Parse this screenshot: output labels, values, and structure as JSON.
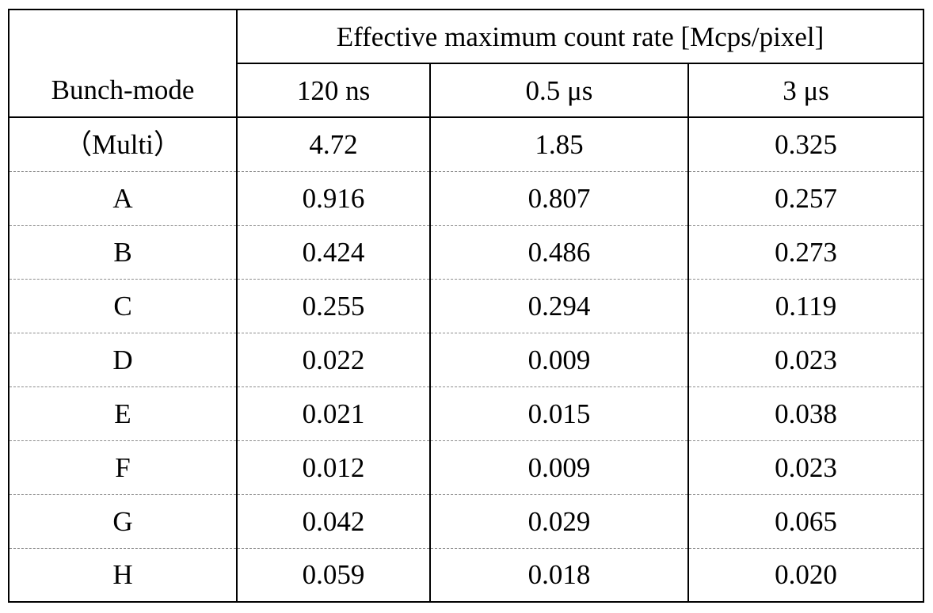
{
  "table": {
    "group_header": "Effective maximum count rate [Mcps/pixel]",
    "row_header_label": "Bunch-mode",
    "columns": [
      "120 ns",
      "0.5 μs",
      "3 μs"
    ],
    "rows": [
      {
        "mode": "（Multi）",
        "values": [
          "4.72",
          "1.85",
          "0.325"
        ]
      },
      {
        "mode": "A",
        "values": [
          "0.916",
          "0.807",
          "0.257"
        ]
      },
      {
        "mode": "B",
        "values": [
          "0.424",
          "0.486",
          "0.273"
        ]
      },
      {
        "mode": "C",
        "values": [
          "0.255",
          "0.294",
          "0.119"
        ]
      },
      {
        "mode": "D",
        "values": [
          "0.022",
          "0.009",
          "0.023"
        ]
      },
      {
        "mode": "E",
        "values": [
          "0.021",
          "0.015",
          "0.038"
        ]
      },
      {
        "mode": "F",
        "values": [
          "0.012",
          "0.009",
          "0.023"
        ]
      },
      {
        "mode": "G",
        "values": [
          "0.042",
          "0.029",
          "0.065"
        ]
      },
      {
        "mode": "H",
        "values": [
          "0.059",
          "0.018",
          "0.020"
        ]
      }
    ]
  }
}
